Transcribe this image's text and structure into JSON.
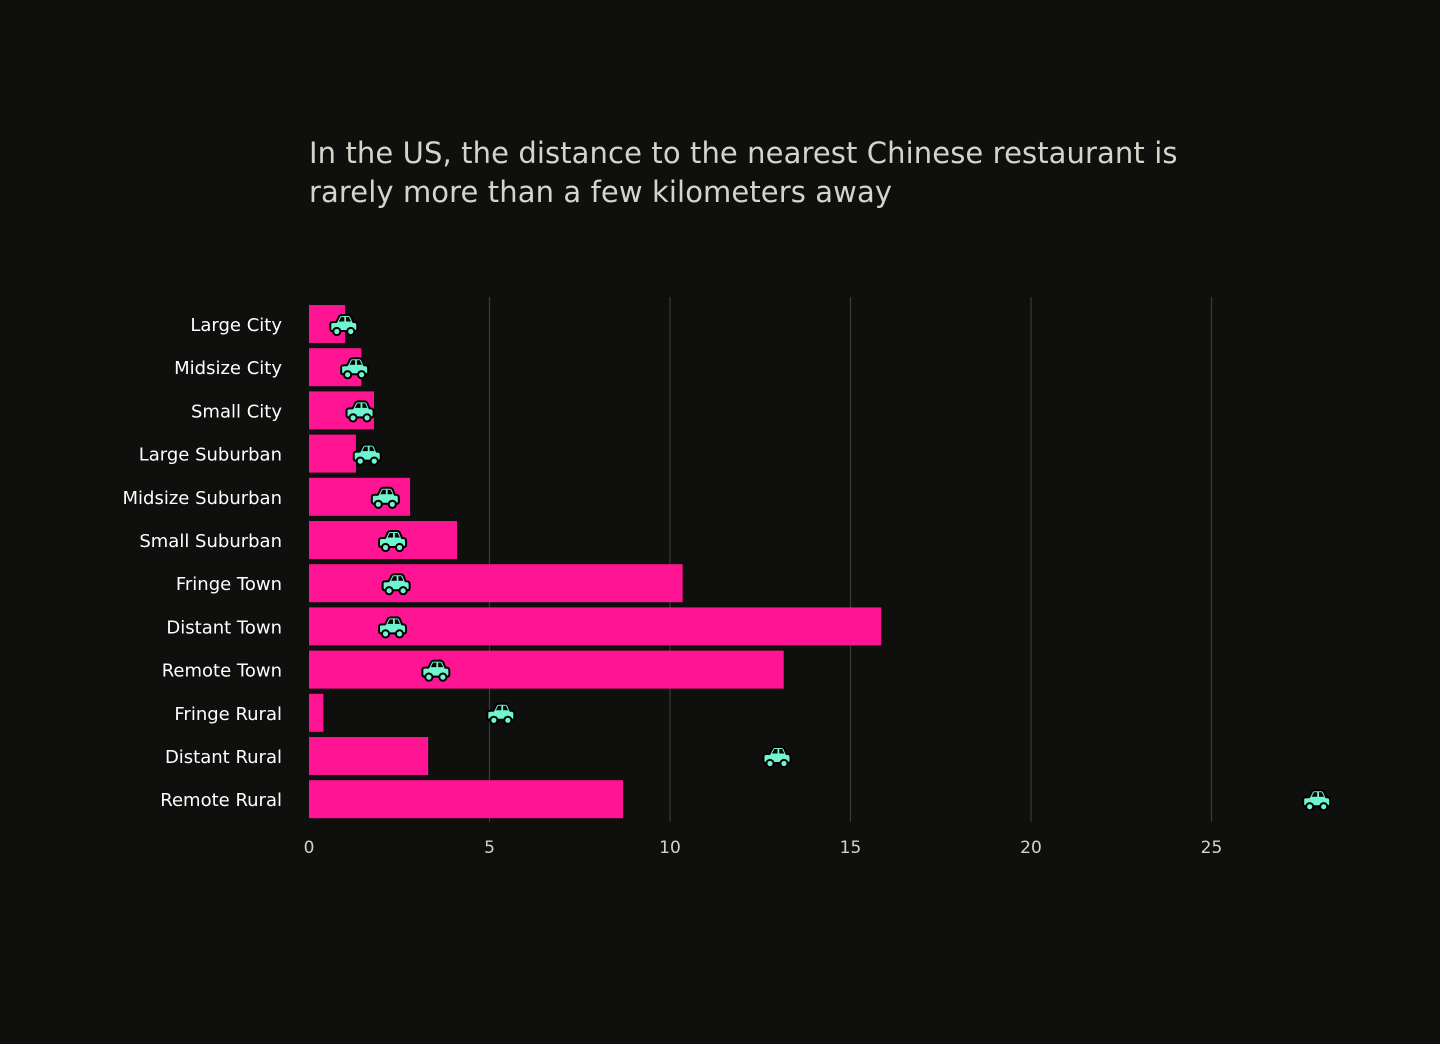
{
  "title_line1": "In the US, the distance to the nearest Chinese restaurant is",
  "title_line2": "rarely more than a few kilometers away",
  "colors": {
    "background": "#0f0f0e",
    "bar": "#ff1493",
    "car_icon": "#6ff5d0",
    "grid": "#3a3a38",
    "text": "#ffffff",
    "title": "#d6d3cb"
  },
  "chart_data": {
    "type": "bar",
    "orientation": "horizontal",
    "categories": [
      "Large City",
      "Midsize City",
      "Small City",
      "Large Suburban",
      "Midsize Suburban",
      "Small Suburban",
      "Fringe Town",
      "Distant Town",
      "Remote Town",
      "Fringe Rural",
      "Distant Rural",
      "Remote Rural"
    ],
    "series": [
      {
        "mark": "bar",
        "values": [
          1.0,
          1.45,
          1.8,
          1.3,
          2.8,
          4.1,
          10.35,
          15.85,
          13.15,
          0.4,
          3.3,
          8.7
        ]
      },
      {
        "mark": "car-icon",
        "values": [
          0.95,
          1.25,
          1.4,
          1.6,
          2.1,
          2.3,
          2.4,
          2.3,
          3.5,
          5.3,
          12.95,
          27.9
        ]
      }
    ],
    "xticks": [
      0,
      5,
      10,
      15,
      20,
      25
    ],
    "xlim": [
      0,
      28.6
    ],
    "grid": "vertical",
    "xlabel": "",
    "ylabel": ""
  }
}
